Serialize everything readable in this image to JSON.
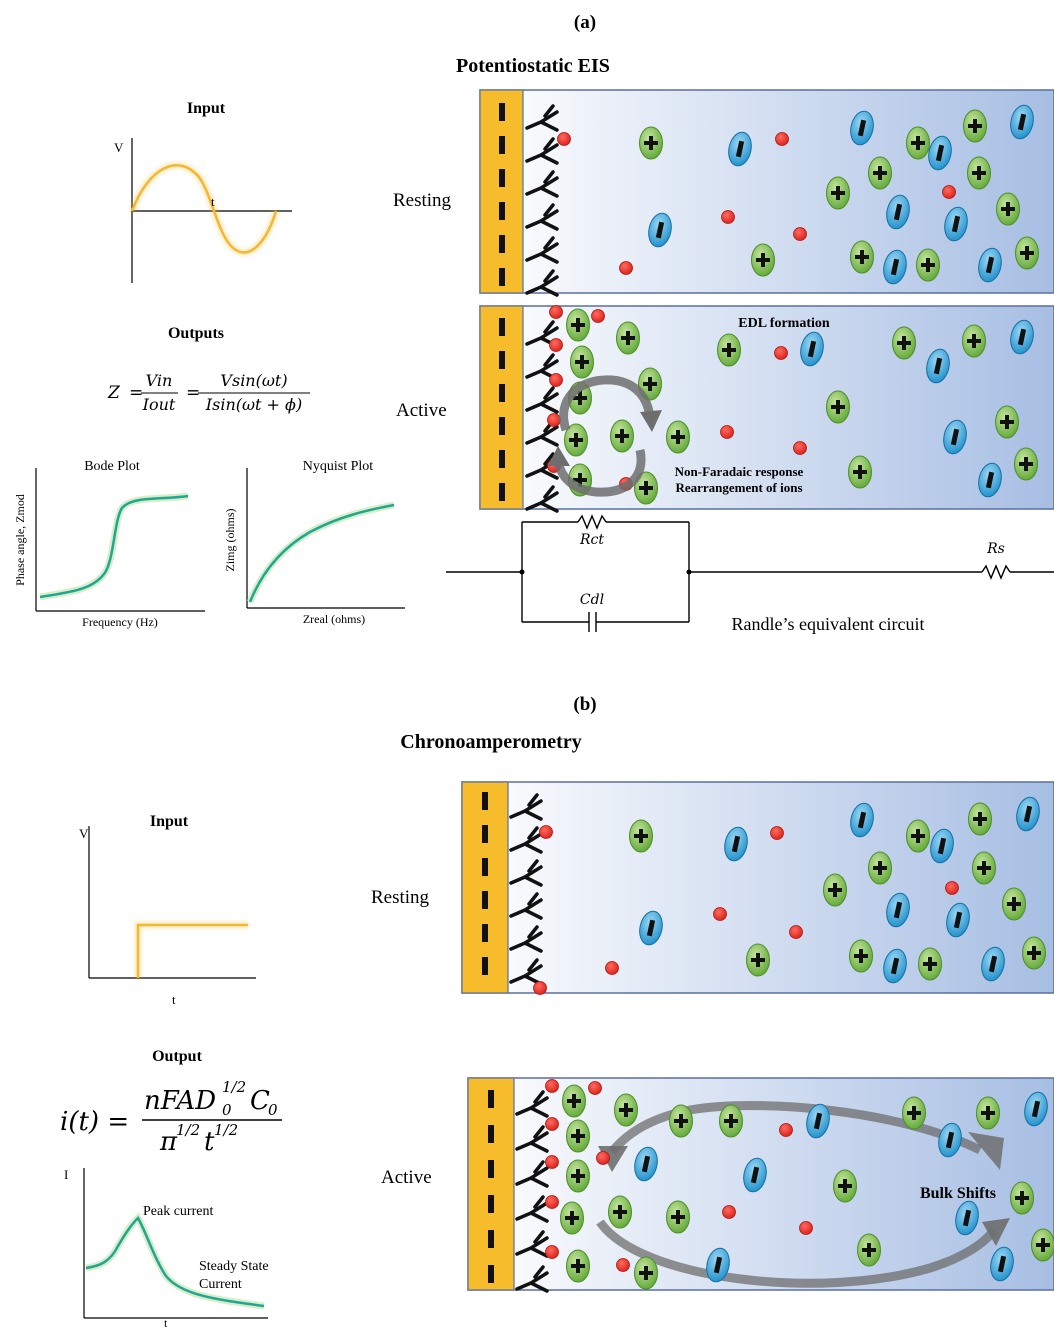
{
  "panel_a": {
    "label": "(a)",
    "title": "Potentiostatic EIS",
    "input_title": "Input",
    "input_axis_v": "V",
    "input_axis_t": "t",
    "outputs_title": "Outputs",
    "equation": {
      "lhs": "Z",
      "f1_num": "Vin",
      "f1_den": "Iout",
      "f2_num": "Vsin(ωt)",
      "f2_den": "Isin(ωt + ϕ)"
    },
    "bode": {
      "title": "Bode Plot",
      "xlabel": "Frequency (Hz)",
      "ylabel": "Phase angle, Zmod"
    },
    "nyquist": {
      "title": "Nyquist Plot",
      "xlabel": "Zreal (ohms)",
      "ylabel": "Zimg (ohms)"
    },
    "resting_label": "Resting",
    "active_label": "Active",
    "edl_label": "EDL formation",
    "nonfaradaic_line1": "Non-Faradaic response",
    "nonfaradaic_line2": "Rearrangement of ions",
    "circuit": {
      "rct": "Rct",
      "cdl": "Cdl",
      "rs": "Rs",
      "caption": "Randle’s equivalent circuit"
    }
  },
  "panel_b": {
    "label": "(b)",
    "title": "Chronoamperometry",
    "input_title": "Input",
    "input_axis_v": "V",
    "input_axis_t": "t",
    "output_title": "Output",
    "equation_image_text": "i(t) = nFAD0^1/2 C0 / π^1/2 t^1/2",
    "current_axis_i": "I",
    "current_axis_t": "t",
    "peak_label": "Peak current",
    "steady_line1": "Steady State",
    "steady_line2": "Current",
    "resting_label": "Resting",
    "active_label": "Active",
    "bulk_label": "Bulk Shifts"
  },
  "colors": {
    "electrode": "#F7BC2C",
    "solution_light": "#FFFFFF",
    "solution_dark": "#A7BEE3",
    "cation": "#7DBE4E",
    "anion": "#2FA6DD",
    "red_ion": "#E52521",
    "signal_yellow": "#F3B830",
    "curve_teal": "#1FA78F",
    "arrow_grey": "#6E6E6E"
  }
}
